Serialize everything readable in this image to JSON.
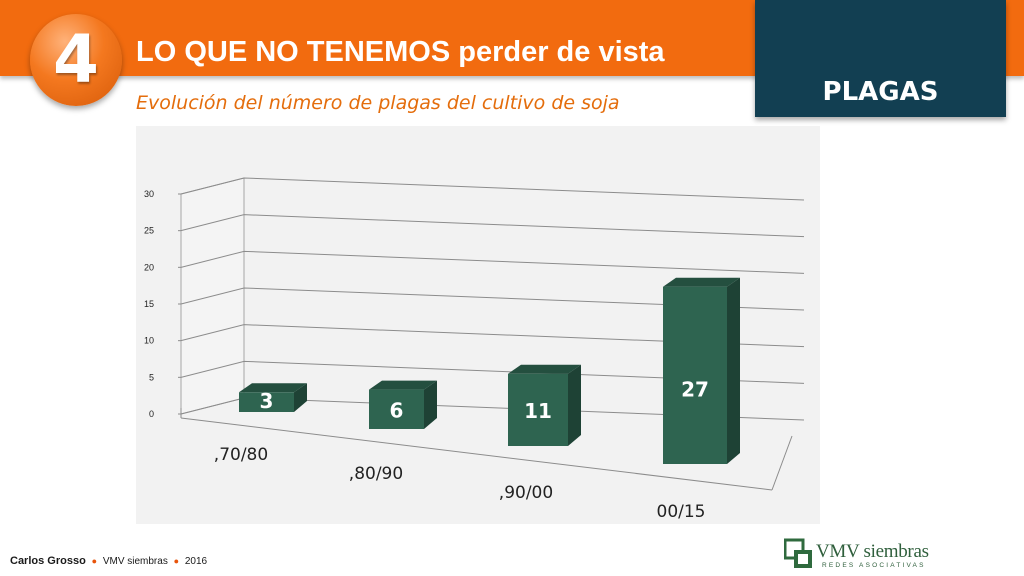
{
  "header": {
    "section_number": "4",
    "title": "LO QUE NO TENEMOS perder de vista",
    "subtitle": "Evolución del número de plagas del cultivo de soja",
    "tag": "PLAGAS"
  },
  "chart_data": {
    "type": "bar",
    "categories": [
      ",70/80",
      ",80/90",
      ",90/00",
      "00/15"
    ],
    "values": [
      3,
      6,
      11,
      27
    ],
    "data_labels": [
      "3",
      "6",
      "11",
      "27"
    ],
    "y_ticks": [
      "0",
      "5",
      "10",
      "15",
      "20",
      "25",
      "30"
    ],
    "ylim": [
      0,
      30
    ],
    "grid": true,
    "style": "3d",
    "bar_color": "#2e6450"
  },
  "footer": {
    "author": "Carlos Grosso",
    "org": "VMV siembras",
    "year": "2016",
    "separator": "●"
  },
  "logo": {
    "name": "VMV siembras",
    "tagline": "REDES ASOCIATIVAS"
  }
}
